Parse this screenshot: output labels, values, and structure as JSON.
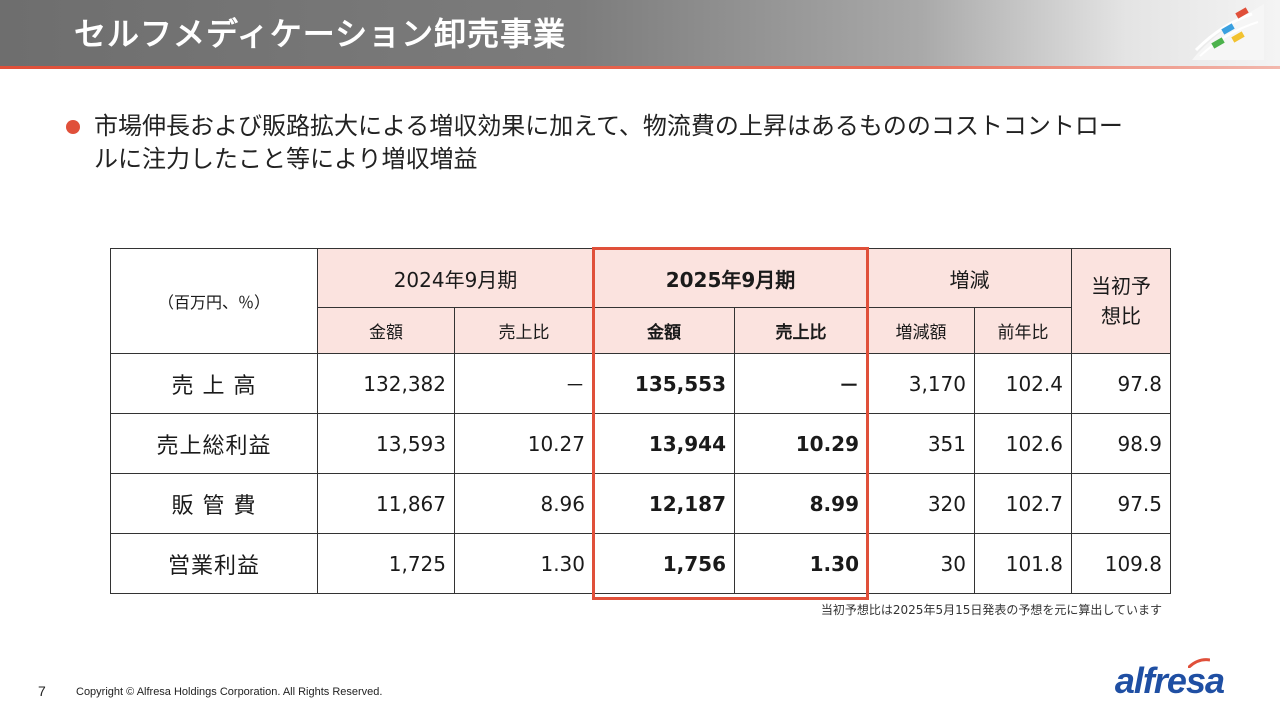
{
  "slide": {
    "title": "セルフメディケーション卸売事業",
    "bullet": "市場伸長および販路拡大による増収効果に加えて、物流費の上昇はあるもののコストコントロールに注力したこと等により増収増益",
    "page_number": "7",
    "copyright": "Copyright © Alfresa Holdings Corporation. All Rights Reserved.",
    "brand": "alfresa",
    "accent_color": "#e0503a",
    "header_pink": "#fbe3df"
  },
  "table": {
    "unit_label": "（百万円、％）",
    "period_prev": "2024年9月期",
    "period_curr": "2025年9月期",
    "change": "増減",
    "forecast_ratio": "当初予想比",
    "col_amount": "金額",
    "col_sales_ratio": "売上比",
    "col_amount_curr": "金額",
    "col_sales_ratio_curr": "売上比",
    "col_change_amount": "増減額",
    "col_yoy": "前年比",
    "rows": [
      {
        "label": "売 上 高",
        "prev_amount": "132,382",
        "prev_ratio": "－",
        "curr_amount": "135,553",
        "curr_ratio": "－",
        "change_amount": "3,170",
        "yoy": "102.4",
        "vs_forecast": "97.8"
      },
      {
        "label": "売上総利益",
        "prev_amount": "13,593",
        "prev_ratio": "10.27",
        "curr_amount": "13,944",
        "curr_ratio": "10.29",
        "change_amount": "351",
        "yoy": "102.6",
        "vs_forecast": "98.9"
      },
      {
        "label": "販 管 費",
        "prev_amount": "11,867",
        "prev_ratio": "8.96",
        "curr_amount": "12,187",
        "curr_ratio": "8.99",
        "change_amount": "320",
        "yoy": "102.7",
        "vs_forecast": "97.5"
      },
      {
        "label": "営業利益",
        "prev_amount": "1,725",
        "prev_ratio": "1.30",
        "curr_amount": "1,756",
        "curr_ratio": "1.30",
        "change_amount": "30",
        "yoy": "101.8",
        "vs_forecast": "109.8"
      }
    ],
    "note": "当初予想比は2025年5月15日発表の予想を元に算出しています"
  }
}
